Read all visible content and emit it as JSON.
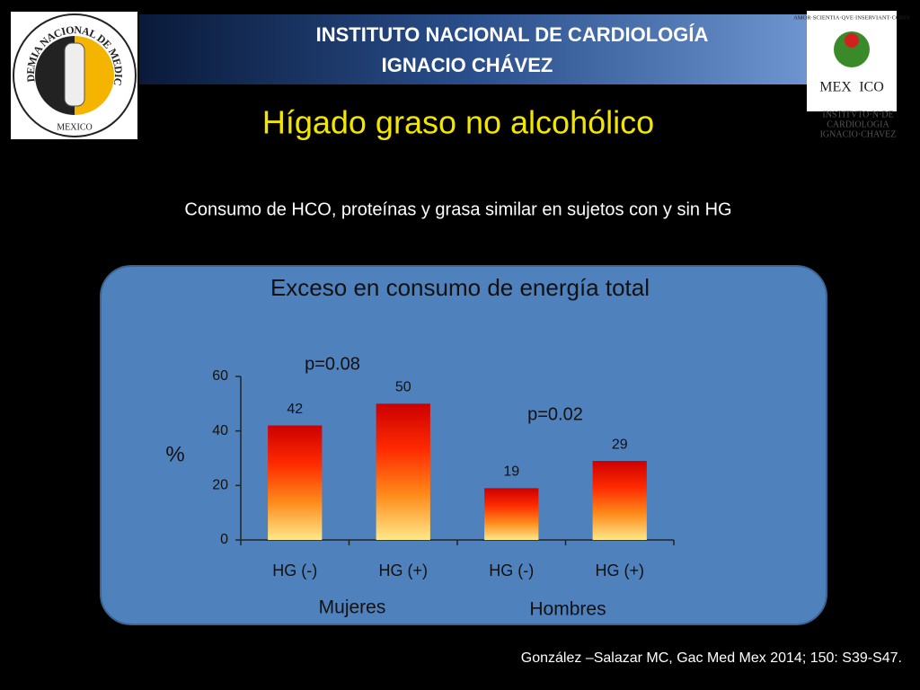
{
  "header": {
    "institute": [
      "INSTITUTO NACIONAL DE CARDIOLOGÍA",
      "IGNACIO CHÁVEZ"
    ],
    "title": "Hígado graso no alcohólico",
    "subtitle": "Consumo de HCO, proteínas y grasa similar en sujetos con y sin HG"
  },
  "left_logo": {
    "ring": "ACADEMIA NACIONAL DE MEDICINA",
    "bottom": "MEXICO"
  },
  "right_logo": {
    "motto": "AMOR·SCIENTIA·QVE·INSERVIANT·CORDI",
    "country": [
      "MEX",
      "ICO"
    ],
    "caption": [
      "INSTITVTO·N·DE",
      "CARDIOLOGIA",
      "IGNACIO·CHAVEZ"
    ]
  },
  "chart_data": {
    "type": "bar",
    "title": "Exceso en consumo de energía total",
    "categories": [
      "HG (-)",
      "HG (+)",
      "HG (-)",
      "HG (+)"
    ],
    "values": [
      42,
      50,
      19,
      29
    ],
    "groups": [
      "Mujeres",
      "Hombres"
    ],
    "annotations": [
      "p=0.08",
      "p=0.02"
    ],
    "ylabel": "%",
    "ylim": [
      0,
      60
    ],
    "yticks": [
      0,
      20,
      40,
      60
    ],
    "colors": [
      "#cc0000",
      "#ff2a00",
      "#ff8a1a",
      "#ffe88a"
    ],
    "grid": false
  },
  "citation": "González –Salazar MC, Gac Med Mex 2014; 150: S39-S47."
}
